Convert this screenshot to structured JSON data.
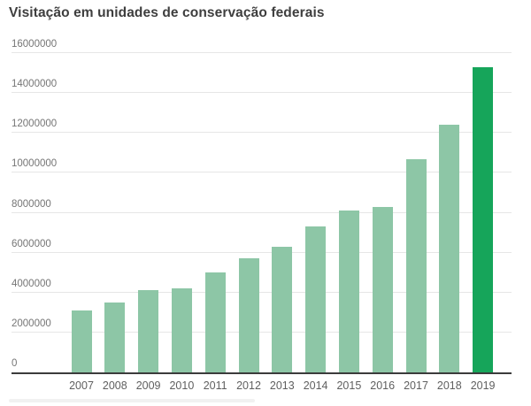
{
  "chart_data": {
    "type": "bar",
    "title": "Visitação em unidades de conservação federais",
    "categories": [
      "2007",
      "2008",
      "2009",
      "2010",
      "2011",
      "2012",
      "2013",
      "2014",
      "2015",
      "2016",
      "2017",
      "2018",
      "2019"
    ],
    "values": [
      3100000,
      3500000,
      4100000,
      4200000,
      5000000,
      5700000,
      6300000,
      7300000,
      8100000,
      8300000,
      10700000,
      12400000,
      15300000
    ],
    "xlabel": "",
    "ylabel": "",
    "ylim": [
      0,
      16000000
    ],
    "y_ticks": [
      0,
      2000000,
      4000000,
      6000000,
      8000000,
      10000000,
      12000000,
      14000000,
      16000000
    ],
    "grid": true,
    "legend": "none",
    "highlight_category": "2019",
    "colors": {
      "bar_default": "#8dc6a6",
      "bar_highlight": "#16a55a",
      "gridline": "#e6e6e6",
      "axis_line": "#3b3b3b",
      "title_text": "#3e3e3e",
      "y_tick_text": "#757575",
      "x_tick_text": "#5f5f5f",
      "background": "#ffffff"
    }
  }
}
